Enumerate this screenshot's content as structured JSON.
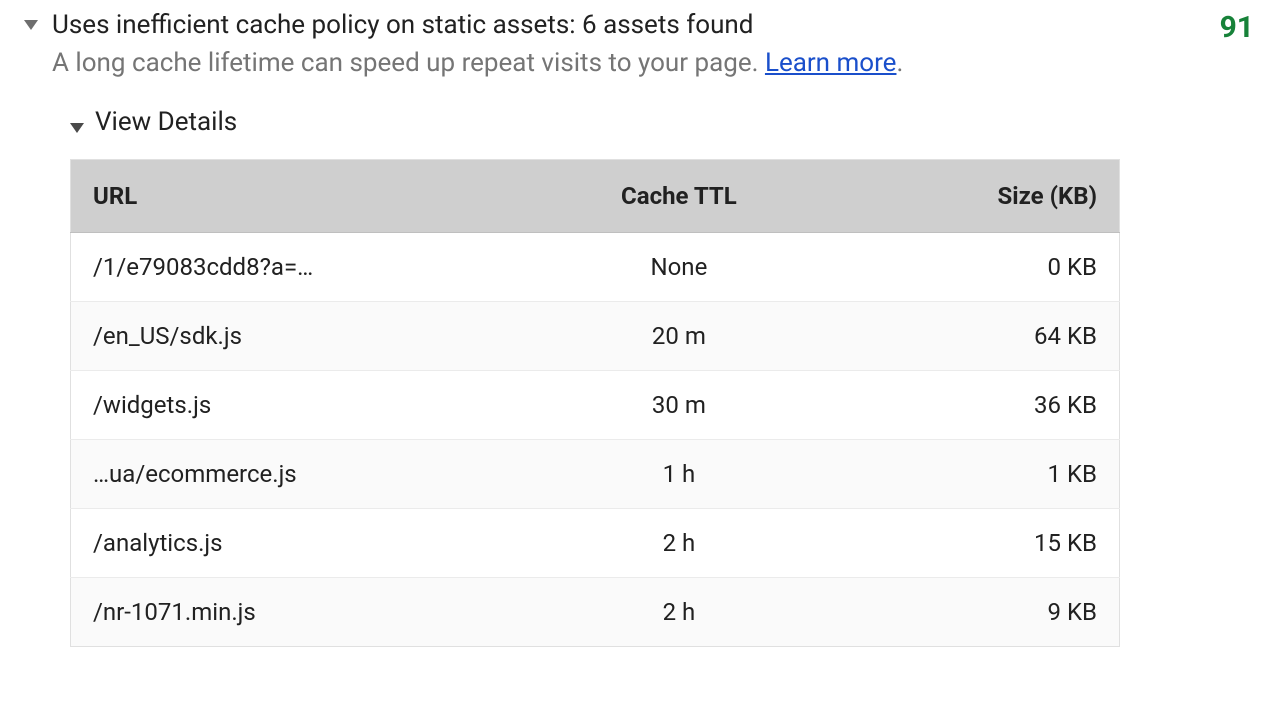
{
  "audit": {
    "title": "Uses inefficient cache policy on static assets: 6 assets found",
    "description": "A long cache lifetime can speed up repeat visits to your page. ",
    "learn_more_label": "Learn more",
    "description_tail": ".",
    "score": "91",
    "score_color": "#178239",
    "view_details_label": "View Details"
  },
  "table": {
    "columns": {
      "url": "URL",
      "ttl": "Cache TTL",
      "size": "Size (KB)"
    },
    "header_bg": "#cfcfcf",
    "row_odd_bg": "#ffffff",
    "row_even_bg": "#fafafa",
    "border_color": "#e0e0e0",
    "rows": [
      {
        "url": "/1/e79083cdd8?a=…",
        "ttl": "None",
        "size": "0 KB"
      },
      {
        "url": "/en_US/sdk.js",
        "ttl": "20 m",
        "size": "64 KB"
      },
      {
        "url": "/widgets.js",
        "ttl": "30 m",
        "size": "36 KB"
      },
      {
        "url": "…ua/ecommerce.js",
        "ttl": "1 h",
        "size": "1 KB"
      },
      {
        "url": "/analytics.js",
        "ttl": "2 h",
        "size": "15 KB"
      },
      {
        "url": "/nr-1071.min.js",
        "ttl": "2 h",
        "size": "9 KB"
      }
    ]
  }
}
